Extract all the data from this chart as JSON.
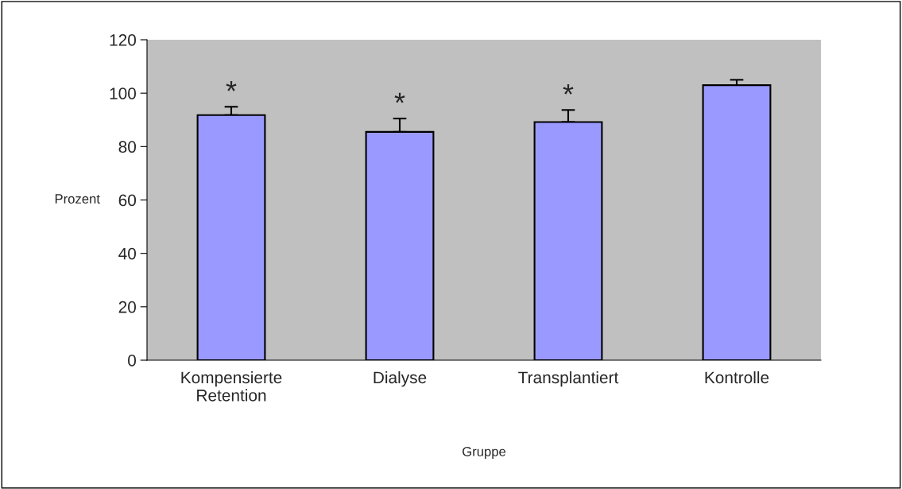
{
  "chart_data": {
    "type": "bar",
    "xlabel": "Gruppe",
    "ylabel": "Prozent",
    "categories": [
      "Kompensierte\nRetention",
      "Dialyse",
      "Transplantiert",
      "Kontrolle"
    ],
    "values": [
      91.8,
      85.5,
      89.2,
      103.0
    ],
    "errors": [
      [
        91.8,
        94.9
      ],
      [
        85.5,
        90.5
      ],
      [
        89.2,
        93.7
      ],
      [
        103.0,
        105.0
      ]
    ],
    "color": "#9999ff",
    "ylim": [
      0,
      120
    ],
    "yticks": [
      0,
      20,
      40,
      60,
      80,
      100,
      120
    ],
    "grid": false,
    "annotations": [
      {
        "text": "*",
        "x": "Kompensierte\nRetention",
        "y": 94.9
      },
      {
        "text": "*",
        "x": "Dialyse",
        "y": 90.5
      },
      {
        "text": "*",
        "x": "Transplantiert",
        "y": 93.7
      }
    ]
  }
}
